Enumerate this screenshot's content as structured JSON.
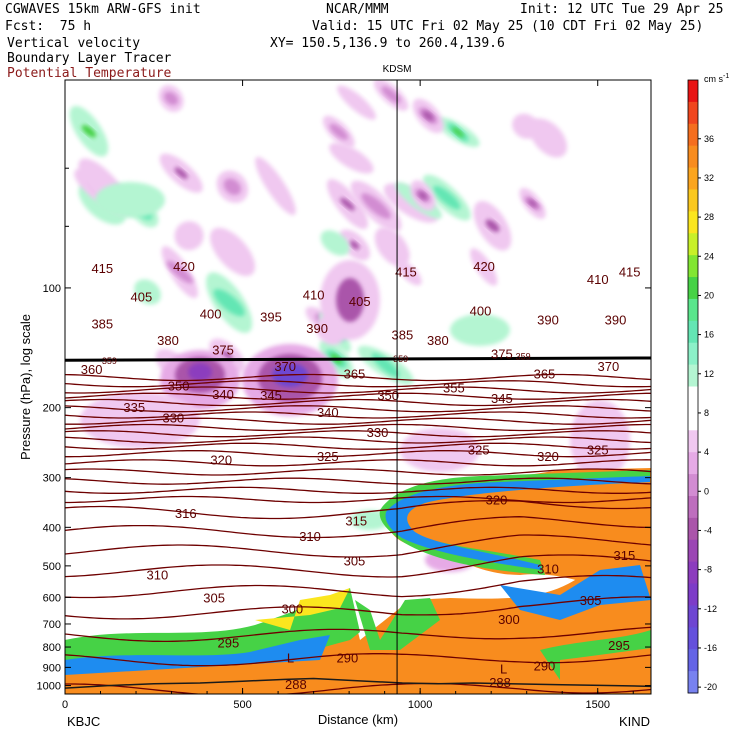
{
  "header": {
    "model": "CGWAVES 15km ARW-GFS init",
    "center": "NCAR/MMM",
    "init": "Init: 12 UTC Tue 29 Apr 25",
    "fcst": "Fcst:  75 h",
    "valid": "Valid: 15 UTC Fri 02 May 25 (10 CDT Fri 02 May 25)",
    "field1": "Vertical velocity",
    "field2": "Boundary Layer Tracer",
    "field3": "Potential Temperature",
    "xy": "XY= 150.5,136.9 to 260.4,139.6"
  },
  "colors": {
    "contour": "#6e0000",
    "terrain": "#1a1a1a"
  },
  "chart_data": {
    "type": "heatmap",
    "xlabel": "Distance (km)",
    "ylabel": "Pressure (hPa), log scale",
    "xlim": [
      0,
      1650
    ],
    "ylim": [
      1050,
      30
    ],
    "x_ticks": [
      0,
      500,
      1000,
      1500
    ],
    "y_ticks": [
      100,
      200,
      300,
      400,
      500,
      600,
      700,
      800,
      900,
      1000
    ],
    "left_station": "KBJC",
    "right_station": "KIND",
    "marker_station": "KDSM",
    "marker_x": 935,
    "colorbar": {
      "unit": "cm s",
      "unit_sup": "-1",
      "labels": [
        36,
        32,
        28,
        24,
        20,
        16,
        12,
        8,
        4,
        0,
        -4,
        -8,
        -12,
        -16,
        -20
      ],
      "colors": [
        "#e81414",
        "#f0461e",
        "#f56e1e",
        "#f88c1e",
        "#fba51e",
        "#fbc81e",
        "#fbe61e",
        "#c8f028",
        "#82e632",
        "#46d246",
        "#5ae68c",
        "#64e6b4",
        "#8cf0c8",
        "#b4f5d2",
        "#ffffff",
        "#ffffff",
        "#f0c8f0",
        "#e6aae6",
        "#d28cd2",
        "#be6ebe",
        "#aa55aa",
        "#9b46b4",
        "#8c3cbe",
        "#7d3cc8",
        "#6e46d2",
        "#6450dc",
        "#6464e6",
        "#7882f0"
      ]
    },
    "theta_labels": [
      {
        "x": 105,
        "p": 89,
        "v": "415"
      },
      {
        "x": 335,
        "p": 88,
        "v": "420"
      },
      {
        "x": 960,
        "p": 91,
        "v": "415"
      },
      {
        "x": 1180,
        "p": 88,
        "v": "420"
      },
      {
        "x": 1500,
        "p": 95,
        "v": "410"
      },
      {
        "x": 1590,
        "p": 91,
        "v": "415"
      },
      {
        "x": 215,
        "p": 105,
        "v": "405"
      },
      {
        "x": 700,
        "p": 104,
        "v": "410"
      },
      {
        "x": 830,
        "p": 108,
        "v": "405"
      },
      {
        "x": 410,
        "p": 116,
        "v": "400"
      },
      {
        "x": 1170,
        "p": 114,
        "v": "400"
      },
      {
        "x": 580,
        "p": 118,
        "v": "395"
      },
      {
        "x": 1360,
        "p": 120,
        "v": "390"
      },
      {
        "x": 1550,
        "p": 120,
        "v": "390"
      },
      {
        "x": 105,
        "p": 123,
        "v": "385"
      },
      {
        "x": 710,
        "p": 126,
        "v": "390"
      },
      {
        "x": 950,
        "p": 131,
        "v": "385"
      },
      {
        "x": 290,
        "p": 135,
        "v": "380"
      },
      {
        "x": 1050,
        "p": 135,
        "v": "380"
      },
      {
        "x": 445,
        "p": 143,
        "v": "375"
      },
      {
        "x": 1230,
        "p": 146,
        "v": "375"
      },
      {
        "x": 620,
        "p": 157,
        "v": "370"
      },
      {
        "x": 1530,
        "p": 157,
        "v": "370"
      },
      {
        "x": 75,
        "p": 160,
        "v": "360"
      },
      {
        "x": 815,
        "p": 164,
        "v": "365"
      },
      {
        "x": 1350,
        "p": 164,
        "v": "365"
      },
      {
        "x": 320,
        "p": 176,
        "v": "350"
      },
      {
        "x": 1095,
        "p": 178,
        "v": "355"
      },
      {
        "x": 445,
        "p": 185,
        "v": "340"
      },
      {
        "x": 580,
        "p": 186,
        "v": "345"
      },
      {
        "x": 910,
        "p": 186,
        "v": "350"
      },
      {
        "x": 1230,
        "p": 189,
        "v": "345"
      },
      {
        "x": 195,
        "p": 199,
        "v": "335"
      },
      {
        "x": 740,
        "p": 205,
        "v": "340"
      },
      {
        "x": 305,
        "p": 212,
        "v": "330"
      },
      {
        "x": 880,
        "p": 230,
        "v": "330"
      },
      {
        "x": 440,
        "p": 270,
        "v": "320"
      },
      {
        "x": 740,
        "p": 265,
        "v": "325"
      },
      {
        "x": 1165,
        "p": 255,
        "v": "325"
      },
      {
        "x": 1360,
        "p": 265,
        "v": "320"
      },
      {
        "x": 1500,
        "p": 255,
        "v": "325"
      },
      {
        "x": 1215,
        "p": 340,
        "v": "320"
      },
      {
        "x": 340,
        "p": 368,
        "v": "316"
      },
      {
        "x": 820,
        "p": 385,
        "v": "315"
      },
      {
        "x": 690,
        "p": 420,
        "v": "310"
      },
      {
        "x": 1575,
        "p": 470,
        "v": "315"
      },
      {
        "x": 815,
        "p": 485,
        "v": "305"
      },
      {
        "x": 260,
        "p": 525,
        "v": "310"
      },
      {
        "x": 1360,
        "p": 508,
        "v": "310"
      },
      {
        "x": 420,
        "p": 600,
        "v": "305"
      },
      {
        "x": 1480,
        "p": 610,
        "v": "305"
      },
      {
        "x": 640,
        "p": 640,
        "v": "300"
      },
      {
        "x": 1250,
        "p": 680,
        "v": "300"
      },
      {
        "x": 460,
        "p": 780,
        "v": "295"
      },
      {
        "x": 1560,
        "p": 790,
        "v": "295"
      },
      {
        "x": 795,
        "p": 850,
        "v": "290"
      },
      {
        "x": 1350,
        "p": 890,
        "v": "290"
      },
      {
        "x": 650,
        "p": 990,
        "v": "288"
      },
      {
        "x": 1225,
        "p": 980,
        "v": "288"
      }
    ],
    "extra_labels": [
      {
        "x": 125,
        "p": 152,
        "v": "359"
      },
      {
        "x": 945,
        "p": 150,
        "v": "359"
      },
      {
        "x": 1290,
        "p": 148,
        "v": "359"
      }
    ],
    "low_labels": [
      {
        "x": 635,
        "p": 850,
        "v": "L"
      },
      {
        "x": 1235,
        "p": 905,
        "v": "L"
      }
    ]
  }
}
